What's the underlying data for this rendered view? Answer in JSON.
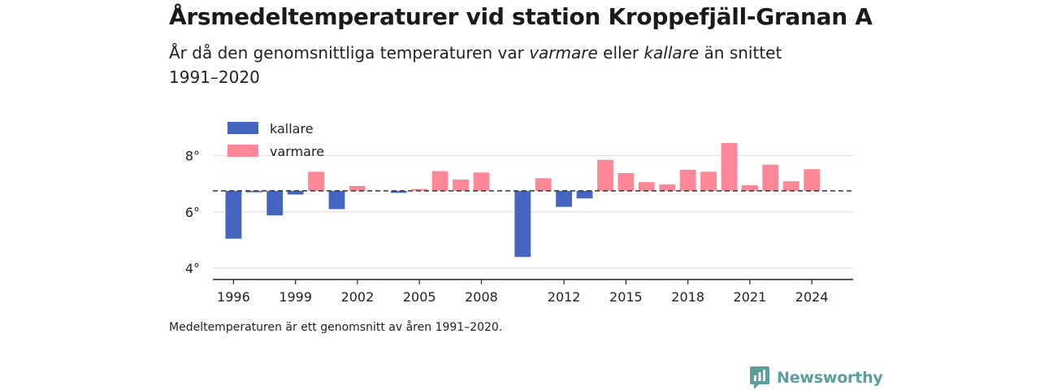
{
  "title": "Årsmedeltemperaturer vid station Kroppefjäll-Granan A",
  "subtitle": {
    "part1": "År då den genomsnittliga temperaturen var ",
    "emph1": "varmare",
    "part2": " eller ",
    "emph2": "kallare",
    "part3": " än snittet 1991–2020"
  },
  "note": "Medeltemperaturen är ett genomsnitt av åren 1991–2020.",
  "brand": {
    "name": "Newsworthy",
    "color": "#5a9ea0"
  },
  "chart_data": {
    "type": "bar",
    "baseline": 6.75,
    "ylim": [
      3.6,
      9.2
    ],
    "yticks": [
      4,
      6,
      8
    ],
    "ytick_suffix": "°",
    "xlim": [
      1995,
      2026
    ],
    "xticks": [
      1996,
      1999,
      2002,
      2005,
      2008,
      2012,
      2015,
      2018,
      2021,
      2024
    ],
    "grid": true,
    "legend_position": "top-left",
    "colors": {
      "kallare": "#4466c0",
      "varmare": "#fd8796"
    },
    "legend": [
      {
        "key": "kallare",
        "label": "kallare"
      },
      {
        "key": "varmare",
        "label": "varmare"
      }
    ],
    "data": [
      {
        "x": 1996,
        "y": 5.05
      },
      {
        "x": 1997,
        "y": 6.7
      },
      {
        "x": 1998,
        "y": 5.88
      },
      {
        "x": 1999,
        "y": 6.62
      },
      {
        "x": 2000,
        "y": 7.43
      },
      {
        "x": 2001,
        "y": 6.1
      },
      {
        "x": 2002,
        "y": 6.92
      },
      {
        "x": 2004,
        "y": 6.68
      },
      {
        "x": 2005,
        "y": 6.82
      },
      {
        "x": 2006,
        "y": 7.45
      },
      {
        "x": 2007,
        "y": 7.15
      },
      {
        "x": 2008,
        "y": 7.4
      },
      {
        "x": 2010,
        "y": 4.4
      },
      {
        "x": 2011,
        "y": 7.2
      },
      {
        "x": 2012,
        "y": 6.18
      },
      {
        "x": 2013,
        "y": 6.48
      },
      {
        "x": 2014,
        "y": 7.85
      },
      {
        "x": 2015,
        "y": 7.38
      },
      {
        "x": 2016,
        "y": 7.06
      },
      {
        "x": 2017,
        "y": 6.98
      },
      {
        "x": 2018,
        "y": 7.5
      },
      {
        "x": 2019,
        "y": 7.43
      },
      {
        "x": 2020,
        "y": 8.45
      },
      {
        "x": 2021,
        "y": 6.95
      },
      {
        "x": 2022,
        "y": 7.68
      },
      {
        "x": 2023,
        "y": 7.09
      },
      {
        "x": 2024,
        "y": 7.52
      }
    ]
  }
}
